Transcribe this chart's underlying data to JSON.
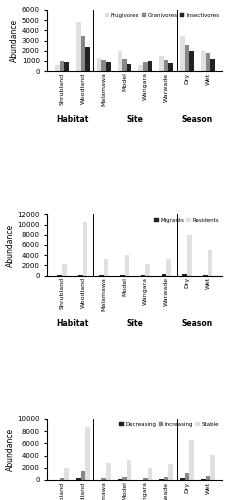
{
  "chart1": {
    "ylabel": "Abundance",
    "ylim": [
      0,
      6000
    ],
    "yticks": [
      0,
      1000,
      2000,
      3000,
      4000,
      5000,
      6000
    ],
    "legend": [
      "Frugivores",
      "Granivores",
      "Insectivores"
    ],
    "colors": [
      "#e0e0e0",
      "#888888",
      "#222222"
    ],
    "groups": [
      "Shrubland",
      "Woodland",
      "Malamawa",
      "Model",
      "Wangara",
      "Warwade",
      "Dry",
      "Wet"
    ],
    "group_labels": [
      "Habitat",
      "Site",
      "Season"
    ],
    "group_centers": [
      0.5,
      3.5,
      6.5
    ],
    "group_dividers": [
      1.5,
      5.5
    ],
    "data": {
      "Frugivores": [
        600,
        4800,
        1300,
        2000,
        600,
        1500,
        3400,
        2000
      ],
      "Granivores": [
        950,
        3400,
        1100,
        1150,
        900,
        1050,
        2600,
        1800
      ],
      "Insectivores": [
        850,
        2350,
        900,
        700,
        950,
        750,
        2000,
        1150
      ]
    }
  },
  "chart2": {
    "ylabel": "Abundance",
    "ylim": [
      0,
      12000
    ],
    "yticks": [
      0,
      2000,
      4000,
      6000,
      8000,
      10000,
      12000
    ],
    "legend": [
      "Migrants",
      "Residents"
    ],
    "colors": [
      "#222222",
      "#e0e0e0"
    ],
    "groups": [
      "Shrubland",
      "Woodland",
      "Malamawa",
      "Model",
      "Wangara",
      "Warwade",
      "Dry",
      "Wet"
    ],
    "group_labels": [
      "Habitat",
      "Site",
      "Season"
    ],
    "group_centers": [
      0.5,
      3.5,
      6.5
    ],
    "group_dividers": [
      1.5,
      5.5
    ],
    "data": {
      "Migrants": [
        100,
        150,
        100,
        100,
        100,
        350,
        350,
        100
      ],
      "Residents": [
        2350,
        10500,
        3200,
        4000,
        2350,
        3200,
        8000,
        5000
      ]
    }
  },
  "chart3": {
    "ylabel": "Abundance",
    "ylim": [
      0,
      10000
    ],
    "yticks": [
      0,
      2000,
      4000,
      6000,
      8000,
      10000
    ],
    "legend": [
      "Decreasing",
      "Increasing",
      "Stable"
    ],
    "colors": [
      "#222222",
      "#888888",
      "#e0e0e0"
    ],
    "groups": [
      "Shrubland",
      "Woodland",
      "Malamawa",
      "Model",
      "Wangara",
      "Warwade",
      "Dry",
      "Wet"
    ],
    "group_labels": [
      "Habitat",
      "Site",
      "Season"
    ],
    "group_centers": [
      0.5,
      3.5,
      6.5
    ],
    "group_dividers": [
      1.5,
      5.5
    ],
    "data": {
      "Decreasing": [
        50,
        250,
        50,
        150,
        50,
        100,
        250,
        100
      ],
      "Increasing": [
        400,
        1400,
        300,
        550,
        400,
        450,
        1100,
        700
      ],
      "Stable": [
        1900,
        8700,
        2800,
        3300,
        1900,
        2600,
        6500,
        4050
      ]
    }
  }
}
